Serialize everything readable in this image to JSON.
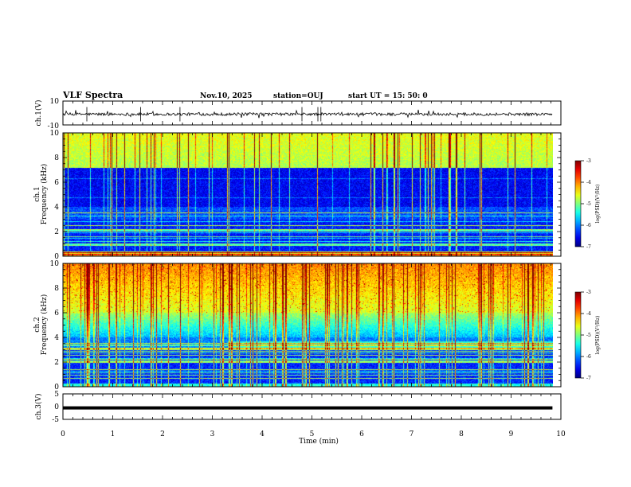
{
  "header": {
    "title": "VLF Spectra",
    "date": "Nov.10, 2025",
    "station": "station=OUJ",
    "start_ut": "start  UT =   15: 50: 0"
  },
  "chart_data": {
    "type": "heatmap",
    "x_axis": {
      "label": "Time  (min)",
      "range": [
        0,
        10
      ],
      "ticks": [
        "0",
        "1",
        "2",
        "3",
        "4",
        "5",
        "6",
        "7",
        "8",
        "9",
        "10"
      ],
      "data_end_min": 9.83
    },
    "panels": [
      {
        "kind": "waveform",
        "ylabel": "ch.1(V)",
        "ylim": [
          -10,
          10
        ],
        "yticks": [
          "10",
          "-10"
        ],
        "baseline_v": -1,
        "noise_amplitude_v": 1.2
      },
      {
        "kind": "spectrogram",
        "ylabel_channel": "ch.1",
        "ylabel": "Frequency  (kHz)",
        "ylim": [
          0,
          10
        ],
        "yticks": [
          "0",
          "2",
          "4",
          "6",
          "8",
          "10"
        ],
        "colorbar": {
          "label": "log(PSD)(V²/Hz)",
          "range": [
            -7,
            -3
          ],
          "ticks": [
            "-3",
            "-4",
            "-5",
            "-6",
            "-7"
          ]
        },
        "description": "quiet band 4-7 kHz, green noise above 7 kHz, horizontal line interference below 3.5 kHz, vertical sferics throughout"
      },
      {
        "kind": "spectrogram",
        "ylabel_channel": "ch.2",
        "ylabel": "Frequency  (kHz)",
        "ylim": [
          0,
          10
        ],
        "yticks": [
          "0",
          "2",
          "4",
          "6",
          "8",
          "10"
        ],
        "colorbar": {
          "label": "log(PSD)(V²/Hz)",
          "range": [
            -7,
            -3
          ],
          "ticks": [
            "-3",
            "-4",
            "-5",
            "-6",
            "-7"
          ]
        },
        "description": "intense yellow/red 6-10 kHz, green emission band ~3.4 kHz after 3.3 min, dense vertical sferics"
      },
      {
        "kind": "waveform",
        "ylabel": "ch.3(V)",
        "ylim": [
          -5,
          5
        ],
        "yticks": [
          "5",
          "0",
          "-5"
        ],
        "baseline_v": -0.5,
        "noise_amplitude_v": 0
      }
    ]
  }
}
